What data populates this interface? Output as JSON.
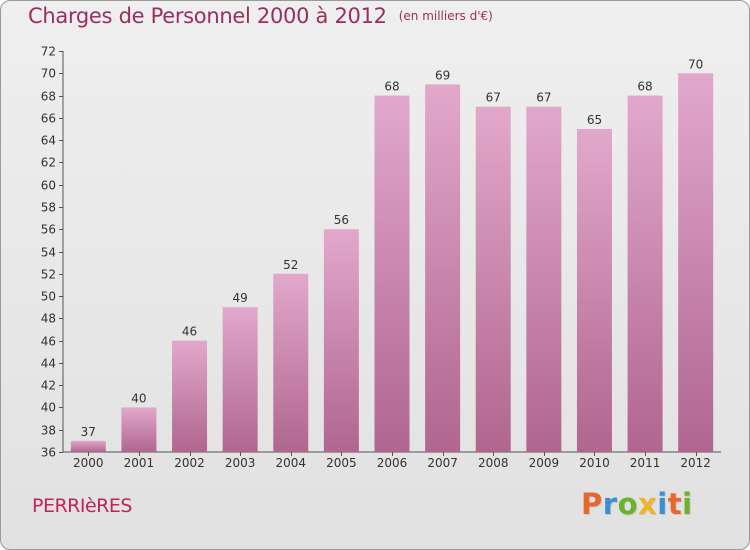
{
  "header": {
    "title": "Charges de Personnel 2000 à 2012",
    "subtitle": "(en milliers d'€)"
  },
  "footer": {
    "place": "PERRIèRES",
    "brand": "Proxiti",
    "brand_colors": [
      "#e8682a",
      "#3a8fd6",
      "#6ab42c",
      "#f0b428",
      "#3a8fd6",
      "#e8682a",
      "#6ab42c"
    ]
  },
  "colors": {
    "bar_top": "#e2a8cb",
    "bar_bottom": "#b0668f",
    "title": "#9a2e62",
    "place": "#c0245b"
  },
  "chart_data": {
    "type": "bar",
    "title": "Charges de Personnel 2000 à 2012",
    "subtitle": "(en milliers d'€)",
    "xlabel": "",
    "ylabel": "",
    "categories": [
      "2000",
      "2001",
      "2002",
      "2003",
      "2004",
      "2005",
      "2006",
      "2007",
      "2008",
      "2009",
      "2010",
      "2011",
      "2012"
    ],
    "values": [
      37,
      40,
      46,
      49,
      52,
      56,
      68,
      69,
      67,
      67,
      65,
      68,
      70
    ],
    "ylim": [
      36,
      72
    ],
    "yticks": [
      36,
      38,
      40,
      42,
      44,
      46,
      48,
      50,
      52,
      54,
      56,
      58,
      60,
      62,
      64,
      66,
      68,
      70,
      72
    ],
    "grid": false,
    "legend": "none"
  }
}
